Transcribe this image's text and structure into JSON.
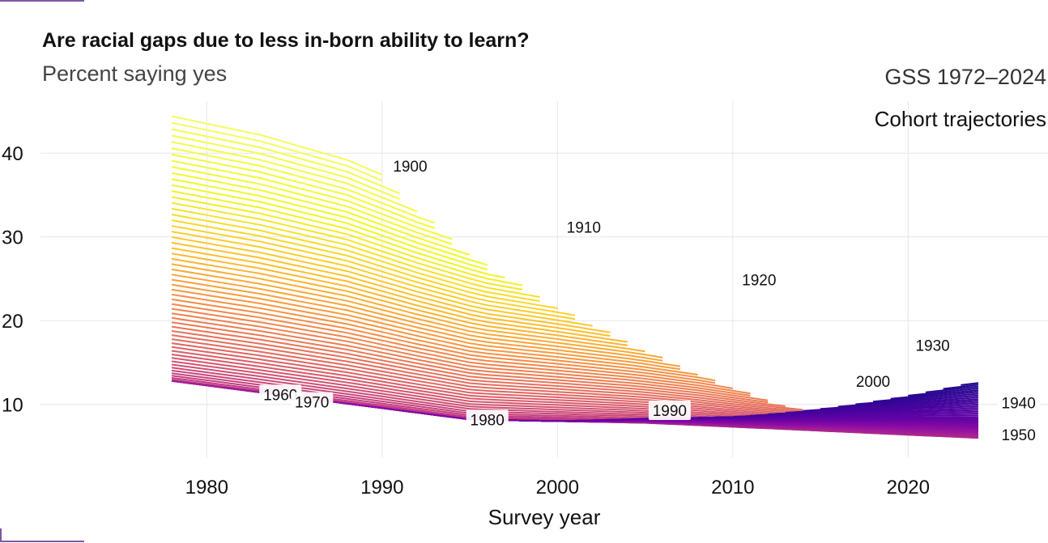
{
  "header": {
    "title": "Are racial gaps due to less in-born ability to learn?",
    "subtitle": "Percent saying yes",
    "source": "GSS 1972–2024",
    "panel_label": "Cohort trajectories"
  },
  "chart_data": {
    "type": "line",
    "title": "Are racial gaps due to less in-born ability to learn?",
    "subtitle": "Percent saying yes",
    "xlabel": "Survey year",
    "ylabel": "",
    "xlim": [
      1968,
      2028
    ],
    "ylim": [
      4,
      48
    ],
    "x_ticks": [
      1980,
      1990,
      2000,
      2010,
      2020
    ],
    "y_ticks": [
      10,
      20,
      30,
      40
    ],
    "grid": true,
    "legend": "none",
    "cohort_range": [
      1900,
      2005
    ],
    "survey_range": [
      1978,
      2024
    ],
    "cohort_labels": [
      {
        "text": "1900",
        "x": 1991.6,
        "y": 38.3
      },
      {
        "text": "1910",
        "x": 2001.5,
        "y": 31.0
      },
      {
        "text": "1920",
        "x": 2011.5,
        "y": 24.7
      },
      {
        "text": "1930",
        "x": 2021.4,
        "y": 16.9
      },
      {
        "text": "1940",
        "x": 2026.3,
        "y": 10.0
      },
      {
        "text": "1950",
        "x": 2026.3,
        "y": 6.2
      },
      {
        "text": "1960",
        "x": 1984.2,
        "y": 11.0
      },
      {
        "text": "1970",
        "x": 1986.0,
        "y": 10.1
      },
      {
        "text": "1980",
        "x": 1996.0,
        "y": 8.0
      },
      {
        "text": "1990",
        "x": 2006.4,
        "y": 9.1
      },
      {
        "text": "2000",
        "x": 2018.0,
        "y": 12.6
      }
    ]
  }
}
